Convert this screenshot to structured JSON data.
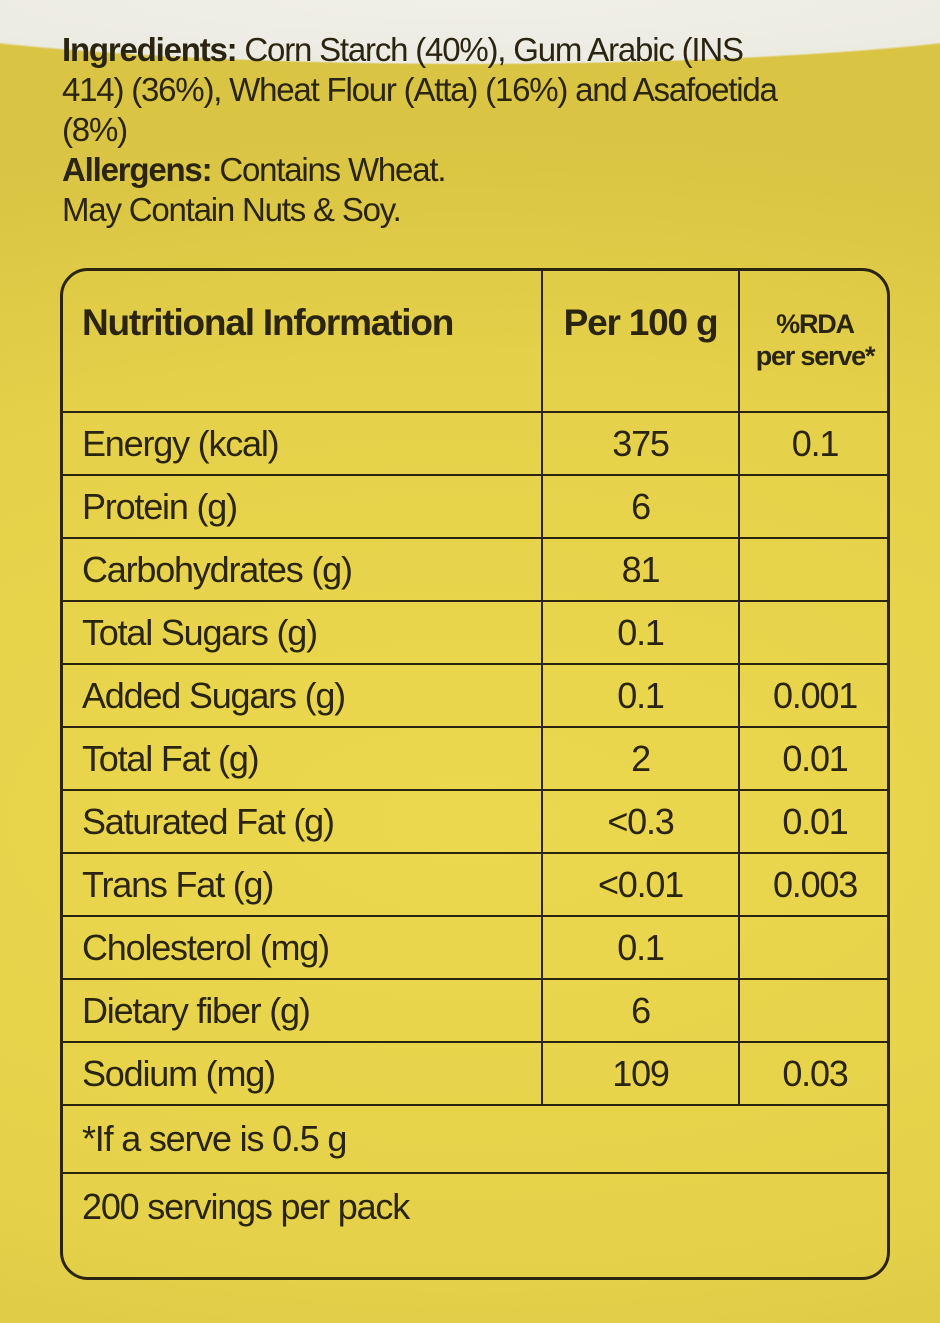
{
  "ingredients": {
    "label": "Ingredients:",
    "text": "Corn Starch (40%), Gum Arabic (INS 414) (36%), Wheat Flour (Atta) (16%) and Asafoetida (8%)"
  },
  "allergens": {
    "label": "Allergens:",
    "text": "Contains Wheat.",
    "may_contain": "May Contain Nuts & Soy."
  },
  "table": {
    "headers": [
      "Nutritional Information",
      "Per 100 g",
      "%RDA",
      "per serve*"
    ],
    "rows": [
      {
        "name": "Energy (kcal)",
        "per100": "375",
        "rda": "0.1"
      },
      {
        "name": "Protein (g)",
        "per100": "6",
        "rda": ""
      },
      {
        "name": "Carbohydrates (g)",
        "per100": "81",
        "rda": ""
      },
      {
        "name": "Total Sugars (g)",
        "per100": "0.1",
        "rda": ""
      },
      {
        "name": "Added Sugars (g)",
        "per100": "0.1",
        "rda": "0.001"
      },
      {
        "name": "Total Fat (g)",
        "per100": "2",
        "rda": "0.01"
      },
      {
        "name": "Saturated Fat (g)",
        "per100": "<0.3",
        "rda": "0.01"
      },
      {
        "name": "Trans Fat (g)",
        "per100": "<0.01",
        "rda": "0.003"
      },
      {
        "name": "Cholesterol (mg)",
        "per100": "0.1",
        "rda": ""
      },
      {
        "name": "Dietary fiber (g)",
        "per100": "6",
        "rda": ""
      },
      {
        "name": "Sodium (mg)",
        "per100": "109",
        "rda": "0.03"
      }
    ],
    "footnote": "*If a serve is 0.5 g",
    "servings": "200 servings per pack"
  },
  "colors": {
    "label_yellow": "#e6d24a",
    "ink": "#2a2410"
  }
}
